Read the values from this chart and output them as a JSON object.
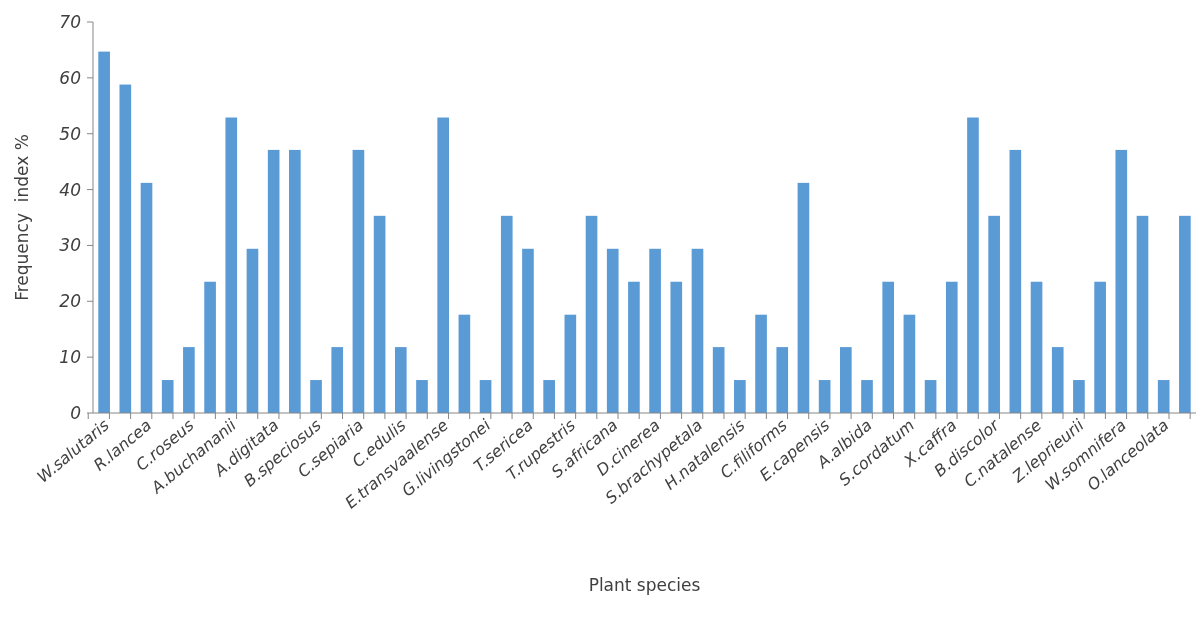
{
  "chart_data": {
    "type": "bar",
    "xlabel": "Plant species",
    "ylabel": "Frequency  index %",
    "categories": [
      "W.salutaris",
      null,
      "R.lancea",
      null,
      "C.roseus",
      null,
      "A.buchananii",
      null,
      "A.digitata",
      null,
      "B.speciosus",
      null,
      "C.sepiaria",
      null,
      "C.edulis",
      null,
      "E.transvaalense",
      null,
      "G.livingstonei",
      null,
      "T.sericea",
      null,
      "T.rupestris",
      null,
      "S.africana",
      null,
      "D.cinerea",
      null,
      "S.brachypetala",
      null,
      "H.natalensis",
      null,
      "C.filiforms",
      null,
      "E.capensis",
      null,
      "A.albida",
      null,
      "S.cordatum",
      null,
      "X.caffra",
      null,
      "B.discolor",
      null,
      "C.natalense",
      null,
      "Z.leprieurii",
      null,
      "W.somnifera",
      null,
      "O.lanceolata",
      null
    ],
    "values": [
      64.7,
      58.8,
      41.2,
      5.9,
      11.8,
      23.5,
      52.9,
      29.4,
      47.1,
      47.1,
      5.9,
      11.8,
      47.1,
      35.3,
      11.8,
      5.9,
      52.9,
      17.6,
      5.9,
      35.3,
      29.4,
      5.9,
      17.6,
      35.3,
      29.4,
      23.5,
      29.4,
      23.5,
      29.4,
      11.8,
      5.9,
      17.6,
      11.8,
      41.2,
      5.9,
      11.8,
      5.9,
      23.5,
      17.6,
      5.9,
      23.5,
      52.9,
      35.3,
      47.1,
      23.5,
      11.8,
      5.9,
      23.5,
      47.1,
      35.3,
      5.9,
      35.3
    ],
    "color": "#5b9bd5",
    "ylim": [
      0,
      70
    ],
    "yticks": [
      0,
      10,
      20,
      30,
      40,
      50,
      60,
      70
    ],
    "grid": false
  }
}
